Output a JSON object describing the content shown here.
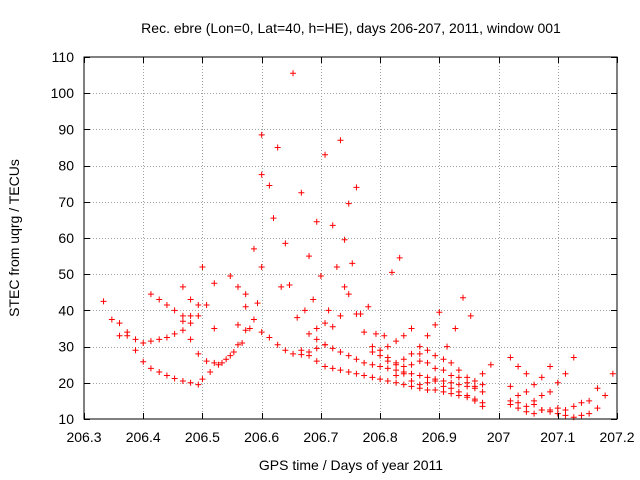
{
  "chart_data": {
    "type": "scatter",
    "title": "Rec. ebre (Lon=0, Lat=40, h=HE), days 206-207, 2011, window 001",
    "xlabel": "GPS time / Days of year 2011",
    "ylabel": "STEC from uqrg / TECUs",
    "xlim": [
      206.3,
      207.2
    ],
    "ylim": [
      10,
      110
    ],
    "xticks": [
      206.3,
      206.4,
      206.5,
      206.6,
      206.7,
      206.8,
      206.9,
      207,
      207.1,
      207.2
    ],
    "xtick_labels": [
      "206.3",
      "206.4",
      "206.5",
      "206.6",
      "206.7",
      "206.8",
      "206.9",
      "207",
      "207.1",
      "207.2"
    ],
    "yticks": [
      10,
      20,
      30,
      40,
      50,
      60,
      70,
      80,
      90,
      100,
      110
    ],
    "ytick_labels": [
      "10",
      "20",
      "30",
      "40",
      "50",
      "60",
      "70",
      "80",
      "90",
      "100",
      "110"
    ],
    "marker": "+",
    "marker_color": "#ff0000",
    "grid": true,
    "series": [
      {
        "name": "STEC",
        "points": [
          [
            206.333,
            42.5
          ],
          [
            206.347,
            37.5
          ],
          [
            206.36,
            36.5
          ],
          [
            206.373,
            33.0
          ],
          [
            206.387,
            29.0
          ],
          [
            206.4,
            25.8
          ],
          [
            206.413,
            24.0
          ],
          [
            206.427,
            23.0
          ],
          [
            206.44,
            22.0
          ],
          [
            206.453,
            21.2
          ],
          [
            206.467,
            20.5
          ],
          [
            206.48,
            20.0
          ],
          [
            206.493,
            19.5
          ],
          [
            206.5,
            21.0
          ],
          [
            206.513,
            23.0
          ],
          [
            206.527,
            25.0
          ],
          [
            206.54,
            26.5
          ],
          [
            206.553,
            28.5
          ],
          [
            206.567,
            31.0
          ],
          [
            206.58,
            35.0
          ],
          [
            206.593,
            42.0
          ],
          [
            206.6,
            77.5
          ],
          [
            206.36,
            33.0
          ],
          [
            206.373,
            34.0
          ],
          [
            206.387,
            32.0
          ],
          [
            206.4,
            31.0
          ],
          [
            206.413,
            31.5
          ],
          [
            206.427,
            32.0
          ],
          [
            206.44,
            32.5
          ],
          [
            206.453,
            33.5
          ],
          [
            206.467,
            34.5
          ],
          [
            206.48,
            36.5
          ],
          [
            206.493,
            38.5
          ],
          [
            206.507,
            41.5
          ],
          [
            206.52,
            47.5
          ],
          [
            206.413,
            44.5
          ],
          [
            206.427,
            43.0
          ],
          [
            206.44,
            41.5
          ],
          [
            206.453,
            40.0
          ],
          [
            206.467,
            38.5
          ],
          [
            206.48,
            32.0
          ],
          [
            206.493,
            28.0
          ],
          [
            206.507,
            26.0
          ],
          [
            206.52,
            25.5
          ],
          [
            206.533,
            25.5
          ],
          [
            206.547,
            27.5
          ],
          [
            206.56,
            30.5
          ],
          [
            206.573,
            34.5
          ],
          [
            206.587,
            37.5
          ],
          [
            206.6,
            34.0
          ],
          [
            206.613,
            32.5
          ],
          [
            206.627,
            30.5
          ],
          [
            206.64,
            29.0
          ],
          [
            206.653,
            28.0
          ],
          [
            206.667,
            27.8
          ],
          [
            206.68,
            28.5
          ],
          [
            206.693,
            29.5
          ],
          [
            206.707,
            30.5
          ],
          [
            206.467,
            46.5
          ],
          [
            206.48,
            43.0
          ],
          [
            206.493,
            41.5
          ],
          [
            206.5,
            52.0
          ],
          [
            206.547,
            49.5
          ],
          [
            206.56,
            46.5
          ],
          [
            206.573,
            44.5
          ],
          [
            206.587,
            57.0
          ],
          [
            206.6,
            88.5
          ],
          [
            206.613,
            74.5
          ],
          [
            206.627,
            85.0
          ],
          [
            206.64,
            58.5
          ],
          [
            206.653,
            105.5
          ],
          [
            206.667,
            72.5
          ],
          [
            206.68,
            55.0
          ],
          [
            206.693,
            64.5
          ],
          [
            206.707,
            83.0
          ],
          [
            206.72,
            63.5
          ],
          [
            206.733,
            87.0
          ],
          [
            206.747,
            69.5
          ],
          [
            206.76,
            74.0
          ],
          [
            206.467,
            37.0
          ],
          [
            206.48,
            38.5
          ],
          [
            206.52,
            35.0
          ],
          [
            206.56,
            36.0
          ],
          [
            206.573,
            41.0
          ],
          [
            206.6,
            52.0
          ],
          [
            206.62,
            65.5
          ],
          [
            206.633,
            46.5
          ],
          [
            206.647,
            47.0
          ],
          [
            206.66,
            38.0
          ],
          [
            206.673,
            40.0
          ],
          [
            206.687,
            43.0
          ],
          [
            206.7,
            49.5
          ],
          [
            206.713,
            40.0
          ],
          [
            206.727,
            52.0
          ],
          [
            206.74,
            59.5
          ],
          [
            206.753,
            53.0
          ],
          [
            206.767,
            39.0
          ],
          [
            206.78,
            41.0
          ],
          [
            206.793,
            33.5
          ],
          [
            206.807,
            33.0
          ],
          [
            206.82,
            50.5
          ],
          [
            206.833,
            54.5
          ],
          [
            206.68,
            33.5
          ],
          [
            206.693,
            35.0
          ],
          [
            206.707,
            36.5
          ],
          [
            206.72,
            35.5
          ],
          [
            206.733,
            38.5
          ],
          [
            206.74,
            46.5
          ],
          [
            206.747,
            44.5
          ],
          [
            206.76,
            39.0
          ],
          [
            206.773,
            34.0
          ],
          [
            206.787,
            30.0
          ],
          [
            206.8,
            27.5
          ],
          [
            206.813,
            26.0
          ],
          [
            206.827,
            25.5
          ],
          [
            206.84,
            26.5
          ],
          [
            206.853,
            28.0
          ],
          [
            206.867,
            30.0
          ],
          [
            206.88,
            33.0
          ],
          [
            206.893,
            36.0
          ],
          [
            206.9,
            39.5
          ],
          [
            206.913,
            30.0
          ],
          [
            206.927,
            35.0
          ],
          [
            206.94,
            43.5
          ],
          [
            206.953,
            38.5
          ],
          [
            206.667,
            29.0
          ],
          [
            206.68,
            27.5
          ],
          [
            206.693,
            26.0
          ],
          [
            206.707,
            24.5
          ],
          [
            206.72,
            24.0
          ],
          [
            206.733,
            23.5
          ],
          [
            206.747,
            23.0
          ],
          [
            206.76,
            22.5
          ],
          [
            206.773,
            22.0
          ],
          [
            206.787,
            21.5
          ],
          [
            206.8,
            21.0
          ],
          [
            206.813,
            20.5
          ],
          [
            206.827,
            20.0
          ],
          [
            206.84,
            19.5
          ],
          [
            206.853,
            19.0
          ],
          [
            206.867,
            18.5
          ],
          [
            206.88,
            18.0
          ],
          [
            206.893,
            18.0
          ],
          [
            206.907,
            17.5
          ],
          [
            206.92,
            17.0
          ],
          [
            206.933,
            16.5
          ],
          [
            206.947,
            16.0
          ],
          [
            206.96,
            15.5
          ],
          [
            206.973,
            14.5
          ],
          [
            206.693,
            32.0
          ],
          [
            206.707,
            30.5
          ],
          [
            206.72,
            29.5
          ],
          [
            206.733,
            28.5
          ],
          [
            206.747,
            27.5
          ],
          [
            206.76,
            26.5
          ],
          [
            206.773,
            25.5
          ],
          [
            206.787,
            25.0
          ],
          [
            206.8,
            24.5
          ],
          [
            206.813,
            24.0
          ],
          [
            206.827,
            23.5
          ],
          [
            206.84,
            23.0
          ],
          [
            206.853,
            22.5
          ],
          [
            206.867,
            22.0
          ],
          [
            206.88,
            21.5
          ],
          [
            206.893,
            21.0
          ],
          [
            206.907,
            20.5
          ],
          [
            206.92,
            20.0
          ],
          [
            206.933,
            19.5
          ],
          [
            206.947,
            19.0
          ],
          [
            206.96,
            18.5
          ],
          [
            206.973,
            17.5
          ],
          [
            206.787,
            28.5
          ],
          [
            206.8,
            29.0
          ],
          [
            206.813,
            30.0
          ],
          [
            206.827,
            31.5
          ],
          [
            206.84,
            33.0
          ],
          [
            206.853,
            35.0
          ],
          [
            206.867,
            28.0
          ],
          [
            206.88,
            29.0
          ],
          [
            206.893,
            27.5
          ],
          [
            206.907,
            26.5
          ],
          [
            206.92,
            25.5
          ],
          [
            206.933,
            23.5
          ],
          [
            206.947,
            21.5
          ],
          [
            206.96,
            20.5
          ],
          [
            206.973,
            22.5
          ],
          [
            206.987,
            25.0
          ],
          [
            206.813,
            27.0
          ],
          [
            206.827,
            25.0
          ],
          [
            206.84,
            24.5
          ],
          [
            206.853,
            25.0
          ],
          [
            206.867,
            26.0
          ],
          [
            206.88,
            25.5
          ],
          [
            206.893,
            24.0
          ],
          [
            206.907,
            23.5
          ],
          [
            206.92,
            22.0
          ],
          [
            206.933,
            21.5
          ],
          [
            206.947,
            20.0
          ],
          [
            206.96,
            19.0
          ],
          [
            206.973,
            19.5
          ],
          [
            206.827,
            22.0
          ],
          [
            206.84,
            22.5
          ],
          [
            206.853,
            20.5
          ],
          [
            206.867,
            19.5
          ],
          [
            206.88,
            20.0
          ],
          [
            206.893,
            20.5
          ],
          [
            206.907,
            19.0
          ],
          [
            206.92,
            18.5
          ],
          [
            206.933,
            17.5
          ],
          [
            206.947,
            16.5
          ],
          [
            206.96,
            15.0
          ],
          [
            206.973,
            13.5
          ],
          [
            207.02,
            27.0
          ],
          [
            207.033,
            24.5
          ],
          [
            207.047,
            22.5
          ],
          [
            207.06,
            19.5
          ],
          [
            207.073,
            21.5
          ],
          [
            207.087,
            24.5
          ],
          [
            207.1,
            20.0
          ],
          [
            207.113,
            22.5
          ],
          [
            207.127,
            27.0
          ],
          [
            207.02,
            19.0
          ],
          [
            207.033,
            16.5
          ],
          [
            207.047,
            17.5
          ],
          [
            207.06,
            15.0
          ],
          [
            207.073,
            16.5
          ],
          [
            207.087,
            17.5
          ],
          [
            207.1,
            13.0
          ],
          [
            207.113,
            12.5
          ],
          [
            207.127,
            13.5
          ],
          [
            207.14,
            14.5
          ],
          [
            207.153,
            15.0
          ],
          [
            207.167,
            18.5
          ],
          [
            207.18,
            16.5
          ],
          [
            207.193,
            22.5
          ],
          [
            207.02,
            14.0
          ],
          [
            207.033,
            14.5
          ],
          [
            207.047,
            13.5
          ],
          [
            207.06,
            14.0
          ],
          [
            207.073,
            12.5
          ],
          [
            207.087,
            12.5
          ],
          [
            207.1,
            11.5
          ],
          [
            207.113,
            11.0
          ],
          [
            207.127,
            10.5
          ],
          [
            207.14,
            11.0
          ],
          [
            207.153,
            11.5
          ],
          [
            207.167,
            13.0
          ],
          [
            207.02,
            15.0
          ],
          [
            207.033,
            13.0
          ],
          [
            207.047,
            12.0
          ],
          [
            207.06,
            11.5
          ],
          [
            207.073,
            12.5
          ],
          [
            207.087,
            12.0
          ]
        ]
      }
    ]
  }
}
